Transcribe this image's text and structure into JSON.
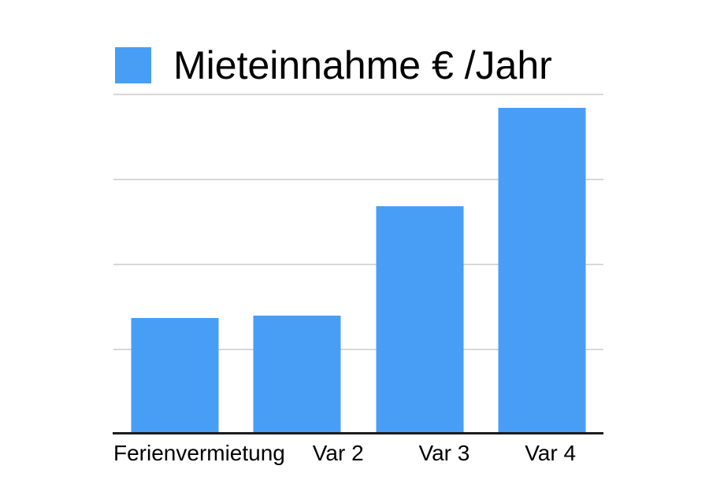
{
  "page": {
    "background_color": "#ffffff"
  },
  "legend": {
    "swatch_color": "#489EF5",
    "label": "Mieteinnahme € /Jahr",
    "position": "top-left"
  },
  "chart_data": {
    "type": "bar",
    "title": "Mieteinnahme € /Jahr",
    "xlabel": "",
    "ylabel": "",
    "categories": [
      "Ferienvermietung",
      "Var 2",
      "Var 3",
      "Var 4"
    ],
    "values": [
      1.36,
      1.39,
      2.68,
      3.83
    ],
    "ylim": [
      0,
      4
    ],
    "gridline_values": [
      1,
      2,
      3,
      4
    ],
    "y_tick_labels_visible": false,
    "note": "No y-axis tick labels shown in image; values estimated in gridline units (gridline spacing = 1 unit)",
    "grid": true,
    "legend_position": "top-left",
    "colors": {
      "bar": "#489EF5",
      "gridline": "#D8D8D8",
      "axis": "#1C1C1C",
      "text": "#000000"
    }
  }
}
